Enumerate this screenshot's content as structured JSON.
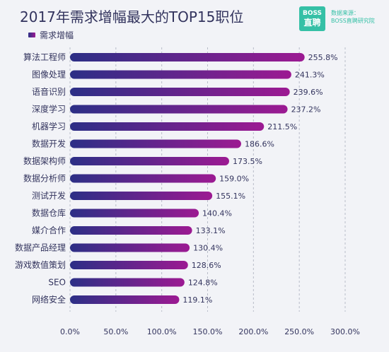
{
  "header": {
    "title": "2017年需求增幅最大的TOP15职位",
    "logo_line1": "BOSS",
    "logo_line2": "直聘",
    "source_label": "数据来源：",
    "source_value": "BOSS直聘研究院"
  },
  "colors": {
    "bar_start": "#2c2f86",
    "bar_end": "#9c1a92",
    "text": "#33345e",
    "grid": "#b8bcc8",
    "logo": "#35c0a6"
  },
  "chart_data": {
    "type": "bar",
    "orientation": "horizontal",
    "title": "2017年需求增幅最大的TOP15职位",
    "legend": [
      "需求增幅"
    ],
    "categories": [
      "算法工程师",
      "图像处理",
      "语音识别",
      "深度学习",
      "机器学习",
      "数据开发",
      "数据架构师",
      "数据分析师",
      "测试开发",
      "数据仓库",
      "媒介合作",
      "数据产品经理",
      "游戏数值策划",
      "SEO",
      "网络安全"
    ],
    "series": [
      {
        "name": "需求增幅",
        "values": [
          255.8,
          241.3,
          239.6,
          237.2,
          211.5,
          186.6,
          173.5,
          159.0,
          155.1,
          140.4,
          133.1,
          130.4,
          128.6,
          124.8,
          119.1
        ],
        "labels": [
          "255.8%",
          "241.3%",
          "239.6%",
          "237.2%",
          "211.5%",
          "186.6%",
          "173.5%",
          "159.0%",
          "155.1%",
          "140.4%",
          "133.1%",
          "130.4%",
          "128.6%",
          "124.8%",
          "119.1%"
        ]
      }
    ],
    "x_ticks": [
      "0.0%",
      "50.0%",
      "100.0%",
      "150.0%",
      "200.0%",
      "250.0%",
      "300.0%"
    ],
    "xlim": [
      0,
      300
    ],
    "grid": "vertical dashed",
    "legend_position": "top-left"
  }
}
